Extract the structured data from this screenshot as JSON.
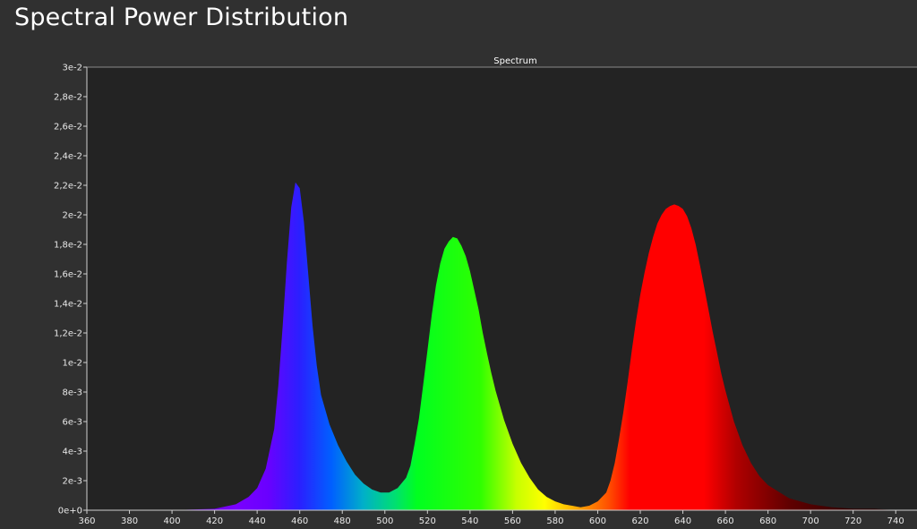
{
  "page": {
    "title": "Spectral Power Distribution"
  },
  "chart_data": {
    "type": "area",
    "title": "Spectrum",
    "xlabel": "",
    "ylabel": "",
    "xlim": [
      360,
      750
    ],
    "ylim": [
      0,
      0.03
    ],
    "grid": false,
    "x_ticks": [
      360,
      380,
      400,
      420,
      440,
      460,
      480,
      500,
      520,
      540,
      560,
      580,
      600,
      620,
      640,
      660,
      680,
      700,
      720,
      740
    ],
    "x_tick_labels": [
      "360",
      "380",
      "400",
      "420",
      "440",
      "460",
      "480",
      "500",
      "520",
      "540",
      "560",
      "580",
      "600",
      "620",
      "640",
      "660",
      "680",
      "700",
      "720",
      "740"
    ],
    "y_ticks": [
      0,
      0.002,
      0.004,
      0.006,
      0.008,
      0.01,
      0.012,
      0.014,
      0.016,
      0.018,
      0.02,
      0.022,
      0.024,
      0.026,
      0.028,
      0.03
    ],
    "y_tick_labels": [
      "0e+0",
      "2e-3",
      "4e-3",
      "6e-3",
      "8e-3",
      "1e-2",
      "1,2e-2",
      "1,4e-2",
      "1,6e-2",
      "1,8e-2",
      "2e-2",
      "2,2e-2",
      "2,4e-2",
      "2,6e-2",
      "2,8e-2",
      "3e-2"
    ],
    "series": [
      {
        "x": [
          400,
          420,
          430,
          436,
          440,
          444,
          448,
          450,
          452,
          454,
          456,
          458,
          460,
          462,
          464,
          466,
          468,
          470,
          474,
          478,
          482,
          486,
          490,
          494,
          498,
          502,
          506,
          510,
          512,
          514,
          516,
          518,
          520,
          522,
          524,
          526,
          528,
          530,
          532,
          534,
          536,
          538,
          540,
          542,
          544,
          546,
          548,
          550,
          552,
          556,
          560,
          564,
          568,
          572,
          576,
          580,
          584,
          588,
          592,
          596,
          600,
          604,
          606,
          608,
          610,
          612,
          614,
          616,
          618,
          620,
          622,
          624,
          626,
          628,
          630,
          632,
          634,
          636,
          638,
          640,
          642,
          644,
          646,
          648,
          650,
          652,
          654,
          656,
          658,
          660,
          664,
          668,
          672,
          676,
          680,
          690,
          700,
          710,
          720,
          730,
          740,
          750
        ],
        "values": [
          0.0,
          0.0001,
          0.0004,
          0.0009,
          0.0015,
          0.0028,
          0.0055,
          0.0085,
          0.0125,
          0.0168,
          0.0205,
          0.0222,
          0.0218,
          0.0195,
          0.016,
          0.0125,
          0.0098,
          0.0078,
          0.0058,
          0.0044,
          0.0033,
          0.0024,
          0.0018,
          0.0014,
          0.0012,
          0.0012,
          0.0015,
          0.0022,
          0.003,
          0.0045,
          0.0062,
          0.0085,
          0.0108,
          0.0132,
          0.0152,
          0.0167,
          0.0177,
          0.0182,
          0.0185,
          0.0184,
          0.0179,
          0.0172,
          0.0162,
          0.0149,
          0.0136,
          0.012,
          0.0106,
          0.0093,
          0.0081,
          0.0061,
          0.0045,
          0.0032,
          0.0022,
          0.0014,
          0.0009,
          0.0006,
          0.0004,
          0.0003,
          0.0002,
          0.0003,
          0.0006,
          0.0012,
          0.002,
          0.0032,
          0.0048,
          0.0066,
          0.0086,
          0.0108,
          0.0128,
          0.0146,
          0.0161,
          0.0174,
          0.0185,
          0.0194,
          0.02,
          0.0204,
          0.0206,
          0.0207,
          0.0206,
          0.0204,
          0.0199,
          0.0191,
          0.018,
          0.0166,
          0.0151,
          0.0136,
          0.0121,
          0.0107,
          0.0093,
          0.0081,
          0.006,
          0.0044,
          0.0032,
          0.0023,
          0.0017,
          0.0008,
          0.0004,
          0.0002,
          0.0001,
          0.0001,
          0.0,
          0.0
        ]
      }
    ]
  }
}
